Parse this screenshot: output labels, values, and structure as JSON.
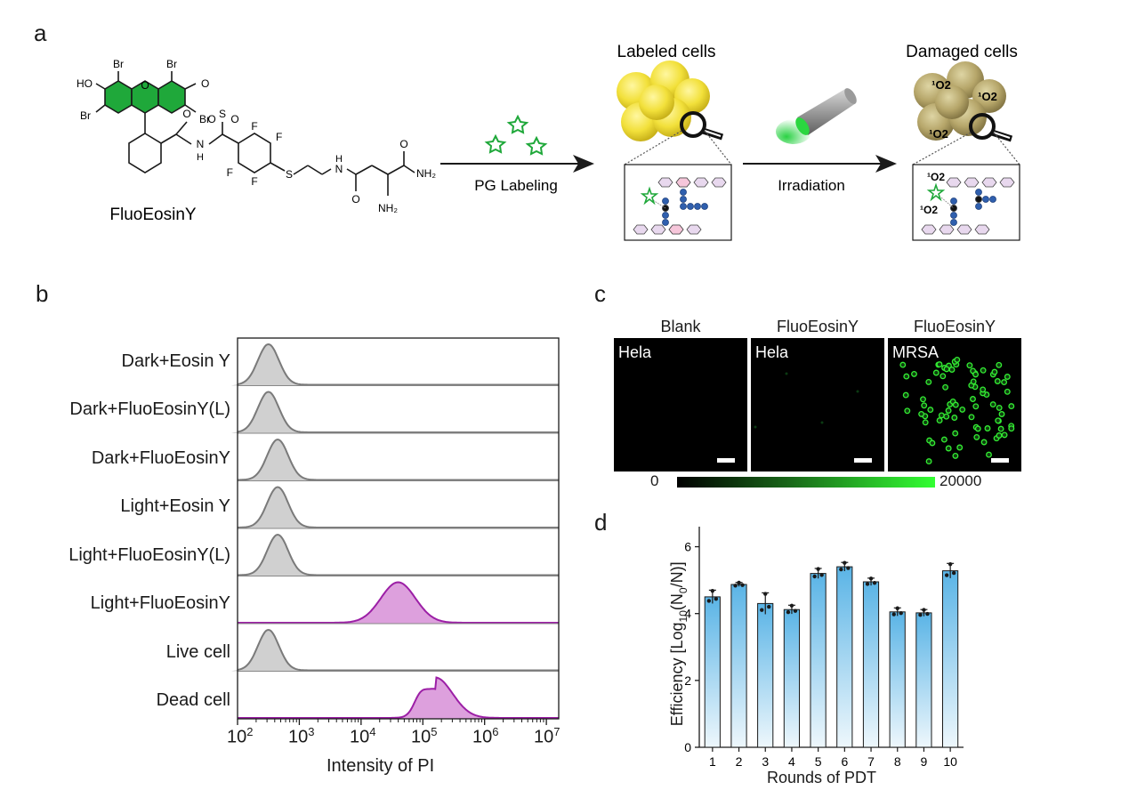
{
  "panel_labels": {
    "a": "a",
    "b": "b",
    "c": "c",
    "d": "d"
  },
  "panel_a": {
    "compound_name": "FluoEosinY",
    "atoms": {
      "br": "Br",
      "ho": "HO",
      "o": "O",
      "f": "F",
      "s": "S",
      "nh": "H",
      "n": "N",
      "nh2": "NH₂",
      "h": "H"
    },
    "step1_label": "PG Labeling",
    "step2_label": "Irradiation",
    "labeled_cells_title": "Labeled cells",
    "damaged_cells_title": "Damaged cells",
    "singlet_oxygen": "¹O2"
  },
  "panel_b": {
    "xlabel": "Intensity of PI",
    "rows": [
      {
        "label": "Dark+Eosin Y",
        "peak_log": 2.5,
        "color": "gray"
      },
      {
        "label": "Dark+FluoEosinY(L)",
        "peak_log": 2.5,
        "color": "gray"
      },
      {
        "label": "Dark+FluoEosinY",
        "peak_log": 2.65,
        "color": "gray"
      },
      {
        "label": "Light+Eosin Y",
        "peak_log": 2.65,
        "color": "gray"
      },
      {
        "label": "Light+FluoEosinY(L)",
        "peak_log": 2.65,
        "color": "gray"
      },
      {
        "label": "Light+FluoEosinY",
        "peak_log": 4.6,
        "color": "purple"
      },
      {
        "label": "Live cell",
        "peak_log": 2.5,
        "color": "gray"
      },
      {
        "label": "Dead cell",
        "peak_log": 5.2,
        "color": "purple"
      }
    ],
    "ticks": [
      {
        "base": "10",
        "exp": "2"
      },
      {
        "base": "10",
        "exp": "3"
      },
      {
        "base": "10",
        "exp": "4"
      },
      {
        "base": "10",
        "exp": "5"
      },
      {
        "base": "10",
        "exp": "6"
      },
      {
        "base": "10",
        "exp": "7"
      }
    ],
    "colors": {
      "gray_fill": "#d0d0d0",
      "gray_line": "#7a7a7a",
      "purple_fill": "#dda0dd",
      "purple_line": "#9c1fa6"
    }
  },
  "panel_c": {
    "images": [
      {
        "title": "Blank",
        "cell": "Hela"
      },
      {
        "title": "FluoEosinY",
        "cell": "Hela"
      },
      {
        "title": "FluoEosinY",
        "cell": "MRSA"
      }
    ],
    "colorbar_min": "0",
    "colorbar_max": "20000"
  },
  "chart_data": {
    "type": "bar",
    "title": "",
    "xlabel": "Rounds of PDT",
    "ylabel": "Efficiency [Log10(N0/N)]",
    "ylabel_parts": {
      "a": "Efficiency [Log",
      "sub1": "10",
      "b": "(N",
      "sub2": "0",
      "c": "/N)]"
    },
    "categories": [
      "1",
      "2",
      "3",
      "4",
      "5",
      "6",
      "7",
      "8",
      "9",
      "10"
    ],
    "values": [
      4.5,
      4.87,
      4.3,
      4.12,
      5.2,
      5.4,
      4.95,
      4.05,
      4.02,
      5.28
    ],
    "errors": [
      0.2,
      0.06,
      0.32,
      0.13,
      0.15,
      0.13,
      0.11,
      0.12,
      0.1,
      0.22
    ],
    "ylim": [
      0,
      6.6
    ],
    "yticks": [
      0,
      2,
      4,
      6
    ],
    "ytick_labels": [
      "0",
      "2",
      "4",
      "6"
    ],
    "grid": false,
    "bar_color_top": "#5ab4e6",
    "bar_color_bottom": "#eef7fc"
  }
}
